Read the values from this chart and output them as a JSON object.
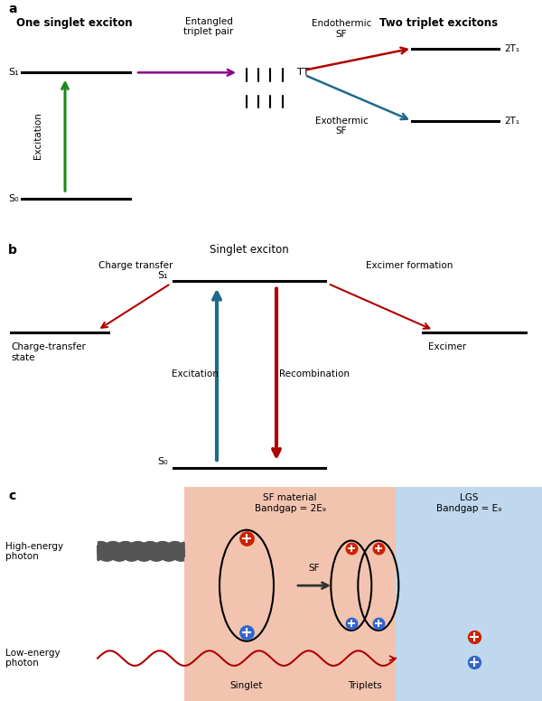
{
  "bg_color": "#ffffff",
  "panel_a": {
    "label": "a",
    "title_left": "One singlet exciton",
    "title_right": "Two triplet excitons",
    "s1_label": "S₁",
    "s0_label": "S₀",
    "tt_label": "TT",
    "t2_upper_label": "2T₁",
    "t2_lower_label": "2T₁",
    "entangled_label": "Entangled\ntriplet pair",
    "endothermic_label": "Endothermic\nSF",
    "exothermic_label": "Exothermic\nSF",
    "excitation_label": "Excitation",
    "green_color": "#1A8A1A",
    "purple_color": "#8B008B",
    "red_color": "#B00000",
    "blue_color": "#1E6B8C"
  },
  "panel_b": {
    "label": "b",
    "s1_label": "S₁",
    "s0_label": "S₀",
    "singlet_label": "Singlet exciton",
    "ct_label": "Charge transfer",
    "ct_state_label": "Charge-transfer\nstate",
    "excimer_form_label": "Excimer formation",
    "excimer_label": "Excimer",
    "excitation_label": "Excitation",
    "recombination_label": "Recombination",
    "blue_color": "#1E6B8C",
    "red_color": "#B00000"
  },
  "panel_c": {
    "label": "c",
    "sf_material_label": "SF material\nBandgap = 2E₉",
    "lgs_label": "LGS\nBandgap = E₉",
    "sf_bg_color": "#F2C4B0",
    "lgs_bg_color": "#C0D8EE",
    "high_energy_label": "High-energy\nphoton",
    "low_energy_label": "Low-energy\nphoton",
    "singlet_label": "Singlet",
    "triplets_label": "Triplets",
    "sf_arrow_label": "SF",
    "wavy_color_high": "#555555",
    "wavy_color_low": "#B00000",
    "red_dot_color": "#CC2200",
    "blue_dot_color": "#3366CC"
  }
}
